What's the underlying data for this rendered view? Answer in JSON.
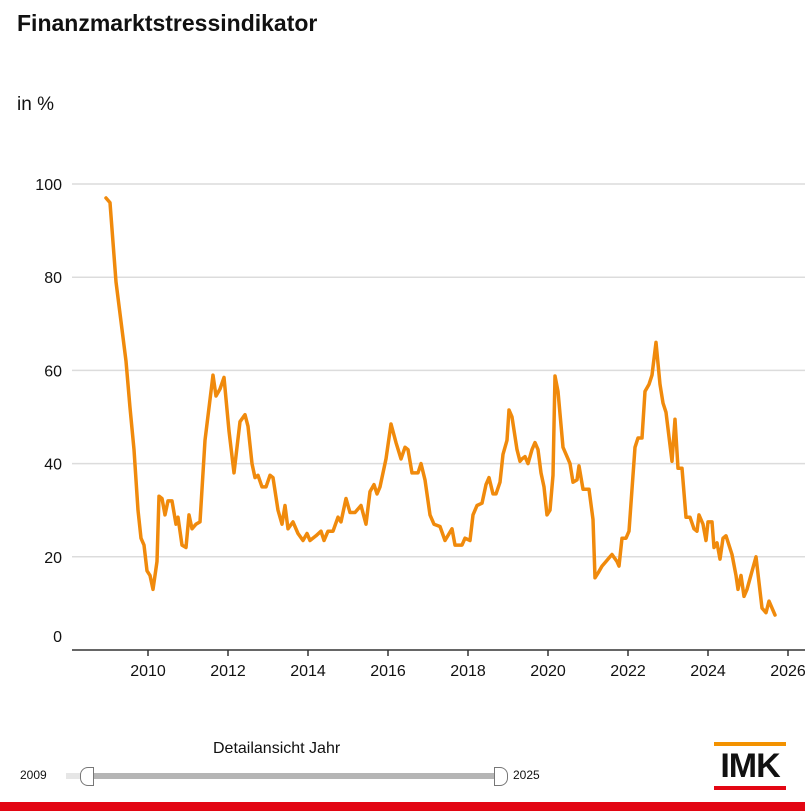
{
  "header": {
    "title": "Finanzmarktstressindikator",
    "unit": "in %"
  },
  "chart_data": {
    "type": "line",
    "title": "Finanzmarktstressindikator",
    "ylabel": "in %",
    "xlabel": "",
    "xlim": [
      2008,
      2026.5
    ],
    "ylim": [
      0,
      100
    ],
    "yticks": [
      0,
      20,
      40,
      60,
      80,
      100
    ],
    "xticks": [
      2010,
      2012,
      2014,
      2016,
      2018,
      2020,
      2022,
      2024,
      2026
    ],
    "grid": true,
    "series": [
      {
        "name": "Finanzmarktstressindikator",
        "color": "#f08a0c",
        "x": [
          2008.95,
          2009.05,
          2009.2,
          2009.45,
          2009.55,
          2009.65,
          2009.75,
          2009.825,
          2009.9,
          2009.975,
          2010.05,
          2010.125,
          2010.225,
          2010.275,
          2010.35,
          2010.425,
          2010.5,
          2010.6,
          2010.7,
          2010.75,
          2010.85,
          2010.95,
          2011.025,
          2011.1,
          2011.2,
          2011.3,
          2011.425,
          2011.625,
          2011.7,
          2011.8,
          2011.9,
          2012.025,
          2012.15,
          2012.3,
          2012.425,
          2012.5,
          2012.6,
          2012.675,
          2012.75,
          2012.85,
          2012.95,
          2013.05,
          2013.125,
          2013.25,
          2013.35,
          2013.425,
          2013.5,
          2013.625,
          2013.75,
          2013.875,
          2013.975,
          2014.05,
          2014.2,
          2014.325,
          2014.4,
          2014.5,
          2014.625,
          2014.75,
          2014.825,
          2014.95,
          2015.05,
          2015.175,
          2015.325,
          2015.45,
          2015.55,
          2015.65,
          2015.725,
          2015.8,
          2015.95,
          2016.075,
          2016.2,
          2016.325,
          2016.425,
          2016.5,
          2016.6,
          2016.75,
          2016.825,
          2016.925,
          2017.05,
          2017.15,
          2017.3,
          2017.425,
          2017.6,
          2017.675,
          2017.85,
          2017.925,
          2018.05,
          2018.125,
          2018.225,
          2018.35,
          2018.45,
          2018.525,
          2018.625,
          2018.7,
          2018.8,
          2018.875,
          2018.975,
          2019.025,
          2019.1,
          2019.225,
          2019.3,
          2019.35,
          2019.425,
          2019.5,
          2019.6,
          2019.675,
          2019.75,
          2019.825,
          2019.9,
          2019.975,
          2020.05,
          2020.125,
          2020.175,
          2020.25,
          2020.375,
          2020.475,
          2020.55,
          2020.625,
          2020.725,
          2020.775,
          2020.875,
          2021.025,
          2021.125,
          2021.175,
          2021.25,
          2021.35,
          2021.45,
          2021.55,
          2021.6,
          2021.725,
          2021.775,
          2021.85,
          2021.95,
          2022.025,
          2022.175,
          2022.25,
          2022.35,
          2022.425,
          2022.525,
          2022.6,
          2022.7,
          2022.8,
          2022.875,
          2022.95,
          2023.1,
          2023.175,
          2023.25,
          2023.35,
          2023.45,
          2023.55,
          2023.65,
          2023.725,
          2023.775,
          2023.875,
          2023.95,
          2024.0,
          2024.1,
          2024.15,
          2024.225,
          2024.3,
          2024.375,
          2024.45,
          2024.6,
          2024.7,
          2024.75,
          2024.825,
          2024.9,
          2024.975,
          2025.2,
          2025.35,
          2025.45,
          2025.525,
          2025.675
        ],
        "values": [
          97,
          96,
          79,
          62,
          52,
          43,
          30,
          24,
          22.5,
          17,
          16,
          13,
          19,
          33,
          32.5,
          29,
          32,
          32,
          27,
          28.5,
          22.5,
          22,
          29,
          26,
          27,
          27.5,
          45,
          59,
          54.5,
          56,
          58.5,
          47,
          38,
          49,
          50.5,
          48,
          40,
          37,
          37.5,
          35,
          35,
          37.5,
          37,
          30,
          27,
          31,
          26,
          27.5,
          25,
          23.5,
          25,
          23.5,
          24.5,
          25.5,
          23.5,
          25.5,
          25.5,
          28.5,
          27.5,
          32.5,
          29.5,
          29.5,
          31,
          27,
          34,
          35.5,
          33.5,
          35,
          41,
          48.5,
          44.5,
          41,
          43.5,
          43,
          38,
          38,
          40,
          36.5,
          29,
          27,
          26.5,
          23.5,
          26,
          22.5,
          22.5,
          24,
          23.5,
          29,
          31,
          31.5,
          35.5,
          37,
          33.5,
          33.5,
          36,
          42,
          45,
          51.5,
          50,
          43,
          40.5,
          41,
          41.5,
          40,
          43,
          44.5,
          43,
          38,
          35,
          29,
          30,
          37.5,
          58.8,
          55.5,
          43.5,
          41.5,
          40,
          36,
          36.5,
          39.5,
          34.5,
          34.5,
          28,
          15.5,
          16.5,
          18,
          19,
          20,
          20.5,
          19,
          18,
          24,
          24,
          25.5,
          43.5,
          45.5,
          45.5,
          55.5,
          57,
          59,
          66,
          57,
          53,
          51,
          40.5,
          49.5,
          39,
          39,
          28.5,
          28.5,
          26,
          25.5,
          29,
          27,
          23.5,
          27.5,
          27.5,
          22,
          23,
          19.5,
          24,
          24.5,
          20.5,
          16,
          13,
          16,
          11.5,
          13,
          20,
          9,
          8,
          10.5,
          7.5
        ]
      }
    ]
  },
  "slider": {
    "label": "Detailansicht Jahr",
    "min_label": "2009",
    "max_label": "2025",
    "range": [
      2009,
      2025
    ]
  },
  "logo": {
    "text": "IMK"
  }
}
